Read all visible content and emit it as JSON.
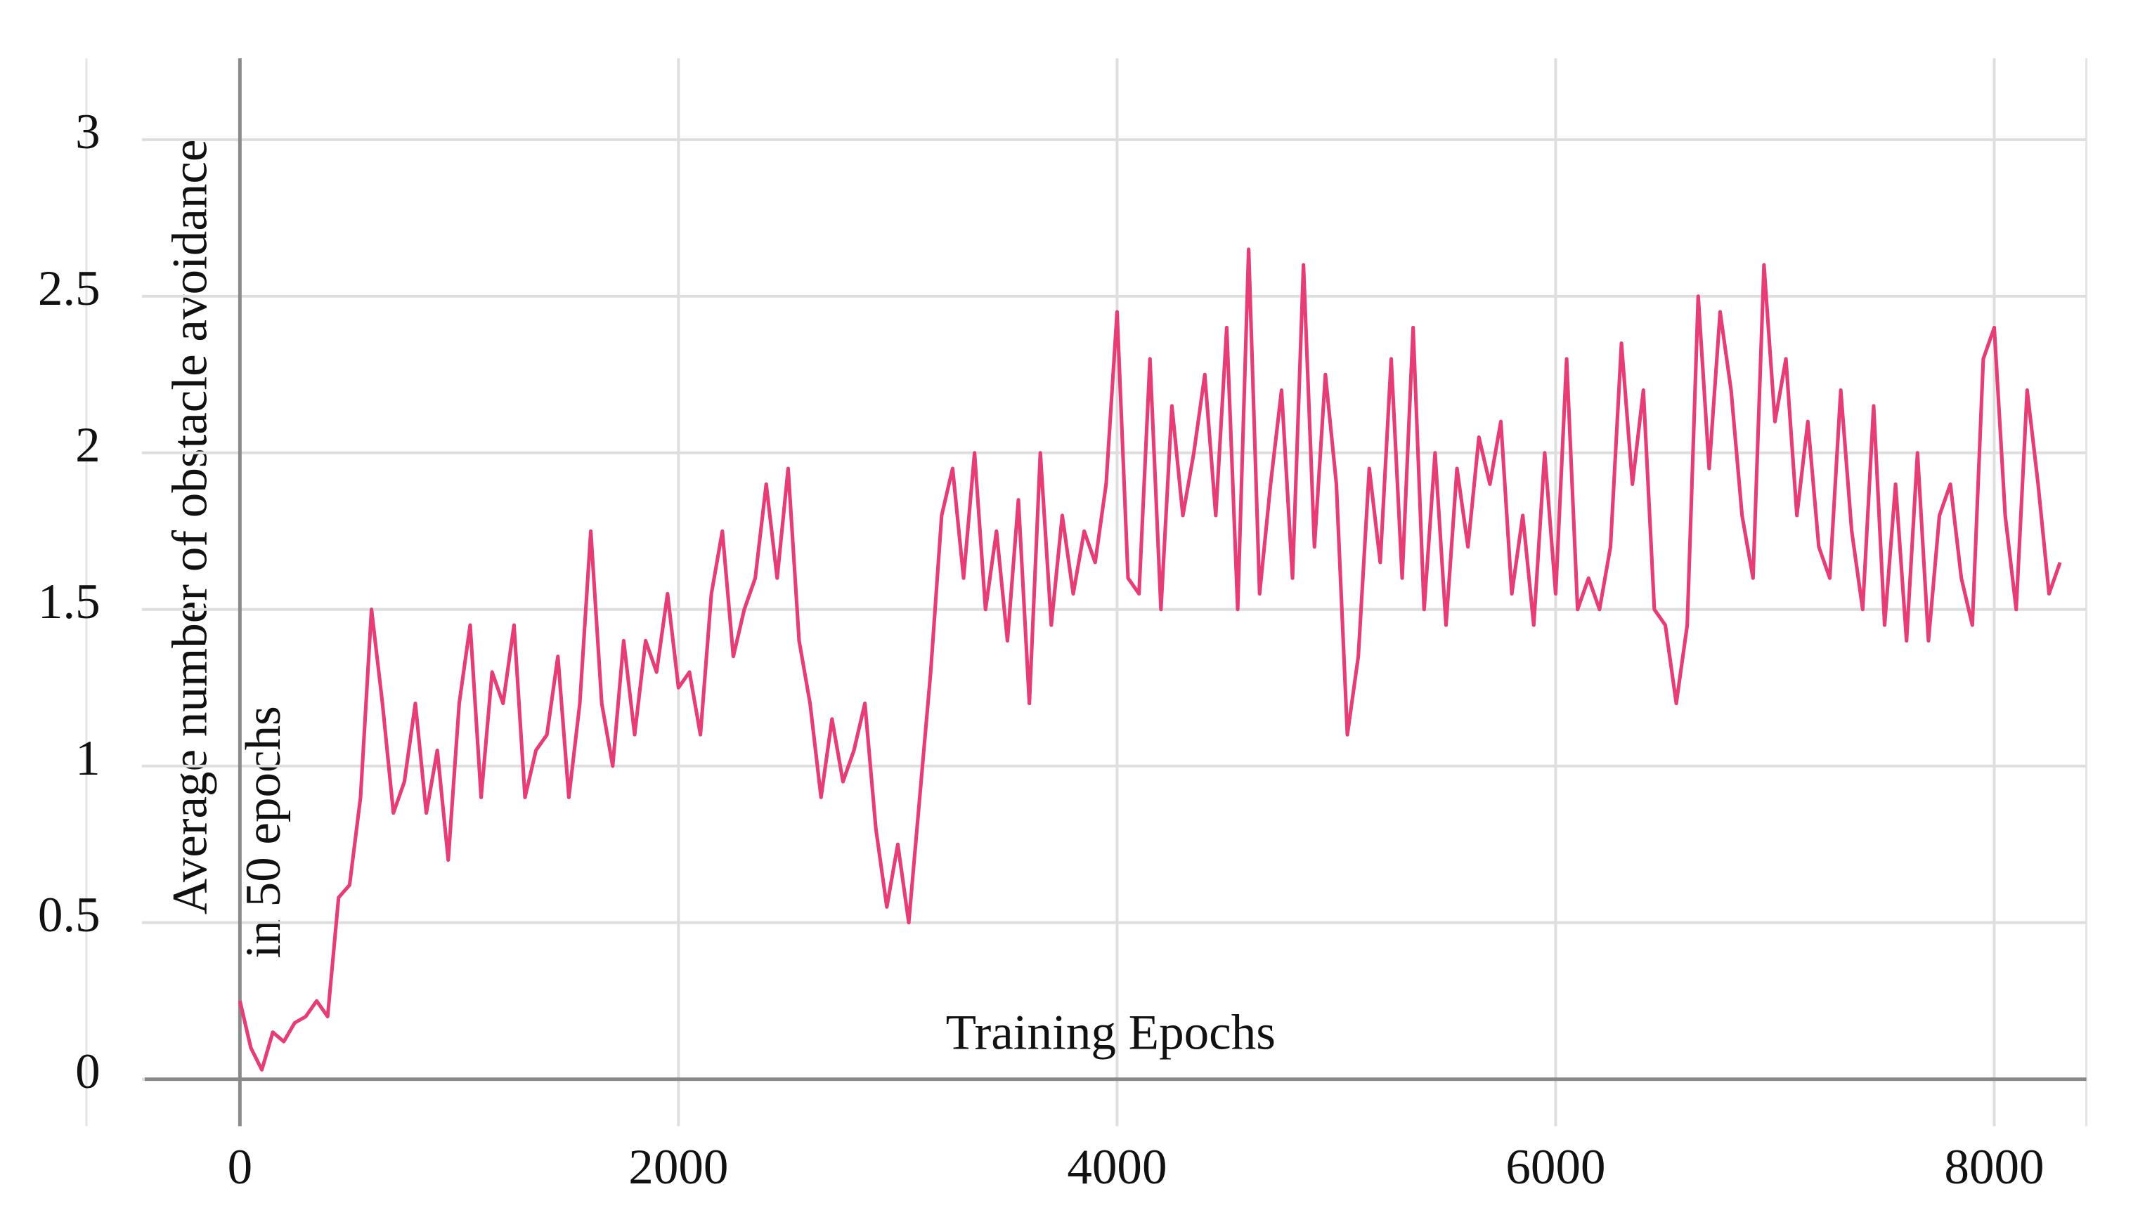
{
  "chart_data": {
    "type": "line",
    "xlabel": "Training Epochs",
    "ylabel": [
      "Average number of obstacle avoidance",
      "in 50 epochs"
    ],
    "xlim": [
      -700,
      8420
    ],
    "ylim": [
      -0.15,
      3.26
    ],
    "xticks": [
      0,
      2000,
      4000,
      6000,
      8000
    ],
    "yticks": [
      0,
      0.5,
      1,
      1.5,
      2,
      2.5,
      3
    ],
    "grid": true,
    "series": [
      {
        "color": "#e63d75",
        "x": [
          0,
          50,
          100,
          150,
          200,
          250,
          300,
          350,
          400,
          450,
          500,
          550,
          600,
          650,
          700,
          750,
          800,
          850,
          900,
          950,
          1000,
          1050,
          1100,
          1150,
          1200,
          1250,
          1300,
          1350,
          1400,
          1450,
          1500,
          1550,
          1600,
          1650,
          1700,
          1750,
          1800,
          1850,
          1900,
          1950,
          2000,
          2050,
          2100,
          2150,
          2200,
          2250,
          2300,
          2350,
          2400,
          2450,
          2500,
          2550,
          2600,
          2650,
          2700,
          2750,
          2800,
          2850,
          2900,
          2950,
          3000,
          3050,
          3100,
          3150,
          3200,
          3250,
          3300,
          3350,
          3400,
          3450,
          3500,
          3550,
          3600,
          3650,
          3700,
          3750,
          3800,
          3850,
          3900,
          3950,
          4000,
          4050,
          4100,
          4150,
          4200,
          4250,
          4300,
          4350,
          4400,
          4450,
          4500,
          4550,
          4600,
          4650,
          4700,
          4750,
          4800,
          4850,
          4900,
          4950,
          5000,
          5050,
          5100,
          5150,
          5200,
          5250,
          5300,
          5350,
          5400,
          5450,
          5500,
          5550,
          5600,
          5650,
          5700,
          5750,
          5800,
          5850,
          5900,
          5950,
          6000,
          6050,
          6100,
          6150,
          6200,
          6250,
          6300,
          6350,
          6400,
          6450,
          6500,
          6550,
          6600,
          6650,
          6700,
          6750,
          6800,
          6850,
          6900,
          6950,
          7000,
          7050,
          7100,
          7150,
          7200,
          7250,
          7300,
          7350,
          7400,
          7450,
          7500,
          7550,
          7600,
          7650,
          7700,
          7750,
          7800,
          7850,
          7900,
          7950,
          8000,
          8050,
          8100,
          8150,
          8200,
          8250,
          8300
        ],
        "values": [
          0.25,
          0.1,
          0.03,
          0.15,
          0.12,
          0.18,
          0.2,
          0.25,
          0.2,
          0.58,
          0.62,
          0.9,
          1.5,
          1.2,
          0.85,
          0.95,
          1.2,
          0.85,
          1.05,
          0.7,
          1.2,
          1.45,
          0.9,
          1.3,
          1.2,
          1.45,
          0.9,
          1.05,
          1.1,
          1.35,
          0.9,
          1.2,
          1.75,
          1.2,
          1.0,
          1.4,
          1.1,
          1.4,
          1.3,
          1.55,
          1.25,
          1.3,
          1.1,
          1.55,
          1.75,
          1.35,
          1.5,
          1.6,
          1.9,
          1.6,
          1.95,
          1.4,
          1.2,
          0.9,
          1.15,
          0.95,
          1.05,
          1.2,
          0.8,
          0.55,
          0.75,
          0.5,
          0.9,
          1.3,
          1.8,
          1.95,
          1.6,
          2.0,
          1.5,
          1.75,
          1.4,
          1.85,
          1.2,
          2.0,
          1.45,
          1.8,
          1.55,
          1.75,
          1.65,
          1.9,
          2.45,
          1.6,
          1.55,
          2.3,
          1.5,
          2.15,
          1.8,
          2.0,
          2.25,
          1.8,
          2.4,
          1.5,
          2.65,
          1.55,
          1.9,
          2.2,
          1.6,
          2.6,
          1.7,
          2.25,
          1.9,
          1.1,
          1.35,
          1.95,
          1.65,
          2.3,
          1.6,
          2.4,
          1.5,
          2.0,
          1.45,
          1.95,
          1.7,
          2.05,
          1.9,
          2.1,
          1.55,
          1.8,
          1.45,
          2.0,
          1.55,
          2.3,
          1.5,
          1.6,
          1.5,
          1.7,
          2.35,
          1.9,
          2.2,
          1.5,
          1.45,
          1.2,
          1.45,
          2.5,
          1.95,
          2.45,
          2.2,
          1.8,
          1.6,
          2.6,
          2.1,
          2.3,
          1.8,
          2.1,
          1.7,
          1.6,
          2.2,
          1.75,
          1.5,
          2.15,
          1.45,
          1.9,
          1.4,
          2.0,
          1.4,
          1.8,
          1.9,
          1.6,
          1.45,
          2.3,
          2.4,
          1.8,
          1.5,
          2.2,
          1.9,
          1.55,
          1.65
        ]
      }
    ]
  }
}
